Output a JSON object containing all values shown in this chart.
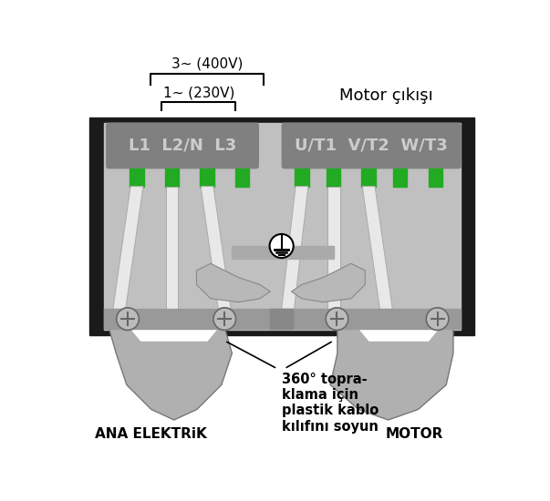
{
  "bg_color": "#ffffff",
  "black": "#000000",
  "dark_gray": "#1a1a1a",
  "device_gray": "#aaaaaa",
  "device_inner": "#c0c0c0",
  "panel_gray": "#808080",
  "label_text": "#cccccc",
  "green": "#22aa22",
  "wire_white": "#e8e8e8",
  "wire_edge": "#aaaaaa",
  "clamp_gray": "#999999",
  "screw_inner": "#bbbbbb",
  "screw_outer": "#666666",
  "sheath_gray": "#b0b0b0",
  "sheath_edge": "#777777",
  "gnd_fill": "#c8c8c8",
  "title_motor": "Motor çıkışı",
  "label_3phase": "3~ (400V)",
  "label_1phase": "1~ (230V)",
  "label_L": "L1  L2/N  L3",
  "label_U": "U/T1  V/T2  W/T3",
  "bottom_left": "ANA ELEKTRiK",
  "bottom_mid": "360° topra-\nklama için\nplastik kablo\nkılıfını soyun",
  "bottom_right": "MOTOR"
}
